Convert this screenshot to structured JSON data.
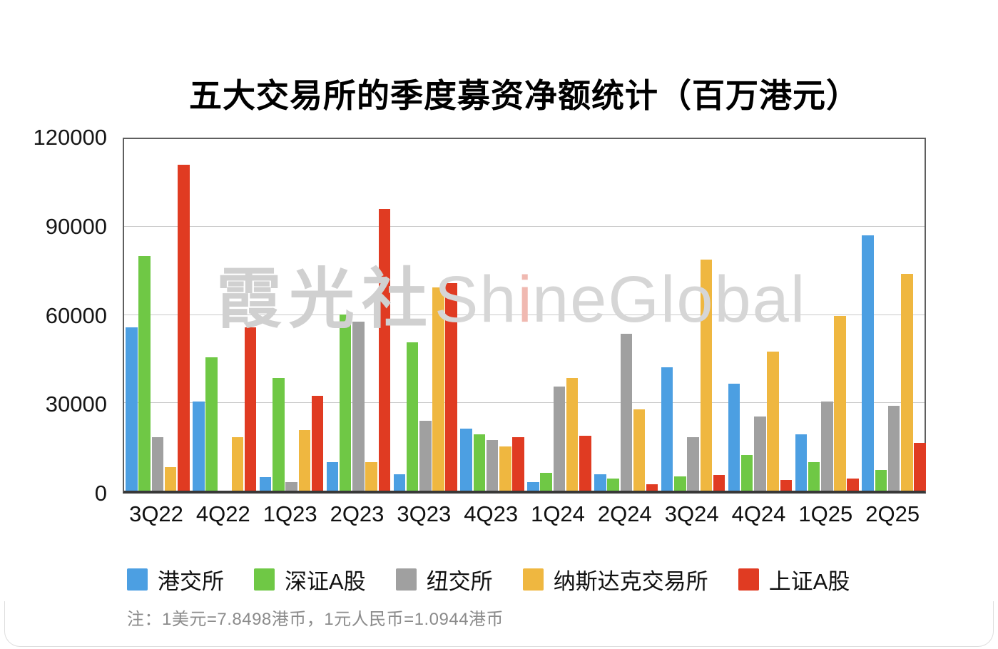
{
  "page": {
    "note": "注：1美元=7.8498港币，1元人民币=1.0944港币",
    "watermark": {
      "cjk": "霞光社",
      "latin_pre": "Sh",
      "latin_i": "i",
      "latin_post": "neGlobal"
    }
  },
  "chart_data": {
    "type": "bar",
    "title": "五大交易所的季度募资净额统计（百万港元）",
    "unit": "百万港元",
    "categories": [
      "3Q22",
      "4Q22",
      "1Q23",
      "2Q23",
      "3Q23",
      "4Q23",
      "1Q24",
      "2Q24",
      "3Q24",
      "4Q24",
      "1Q25",
      "2Q25"
    ],
    "series": [
      {
        "name": "港交所",
        "color": "#4C9FE2",
        "values": [
          55000,
          30000,
          4500,
          9500,
          5500,
          21000,
          3000,
          5500,
          41500,
          36000,
          19000,
          86000
        ]
      },
      {
        "name": "深证A股",
        "color": "#6FC845",
        "values": [
          79000,
          45000,
          38000,
          59500,
          50000,
          19000,
          6000,
          4000,
          4800,
          12000,
          9500,
          7000
        ]
      },
      {
        "name": "纽交所",
        "color": "#A0A0A0",
        "values": [
          18000,
          0,
          3000,
          57000,
          23500,
          17000,
          35000,
          53000,
          18000,
          25000,
          30000,
          28500
        ]
      },
      {
        "name": "纳斯达克交易所",
        "color": "#EFB740",
        "values": [
          8000,
          18000,
          20500,
          9500,
          68500,
          15000,
          38000,
          27500,
          78000,
          47000,
          59000,
          73000
        ]
      },
      {
        "name": "上证A股",
        "color": "#E03B22",
        "values": [
          110000,
          55000,
          32000,
          95000,
          70000,
          18000,
          18500,
          2200,
          5200,
          3500,
          4000,
          16000
        ]
      }
    ],
    "ylim": [
      0,
      120000
    ],
    "yticks": [
      0,
      30000,
      60000,
      90000,
      120000
    ],
    "gridline_values": [
      30000,
      60000,
      90000
    ],
    "grid": true,
    "legend_position": "bottom"
  }
}
